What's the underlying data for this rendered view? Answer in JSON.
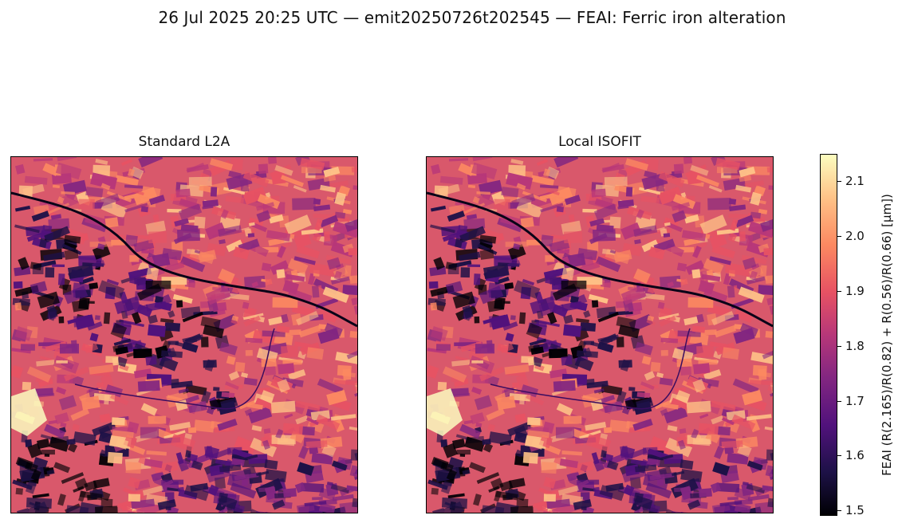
{
  "suptitle": "26 Jul 2025 20:25 UTC — emit20250726t202545 — FEAI: Ferric iron alteration",
  "chart_data": [
    {
      "type": "heatmap",
      "title": "Standard L2A",
      "colormap": "magma",
      "vmin": 1.49,
      "vmax": 2.15
    },
    {
      "type": "heatmap",
      "title": "Local ISOFIT",
      "colormap": "magma",
      "vmin": 1.49,
      "vmax": 2.15
    }
  ],
  "colorbar": {
    "label": "FEAI  (R(2.165)/R(0.82) + R(0.56)/R(0.66)  [μm])",
    "ticks": [
      "1.5",
      "1.6",
      "1.7",
      "1.8",
      "1.9",
      "2.0",
      "2.1"
    ],
    "tick_values": [
      1.5,
      1.6,
      1.7,
      1.8,
      1.9,
      2.0,
      2.1
    ],
    "vmin": 1.49,
    "vmax": 2.15
  }
}
